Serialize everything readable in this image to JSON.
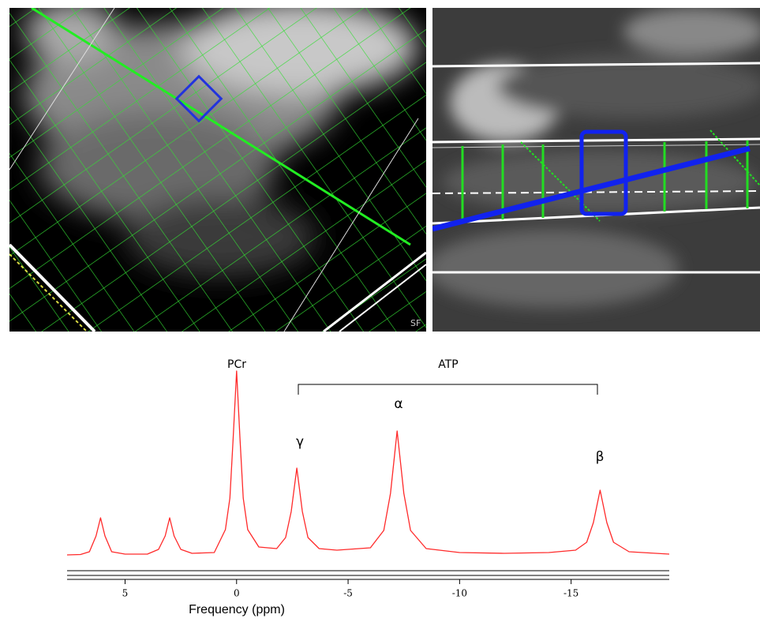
{
  "image_text": "SF",
  "chart_data": {
    "type": "line",
    "xlabel": "Frequency (ppm)",
    "annotations": [
      "PCr",
      "ATP",
      "γ",
      "α",
      "β"
    ],
    "x": [
      7.6,
      7,
      6.6,
      6.3,
      6.1,
      5.9,
      5.6,
      5,
      4,
      3.5,
      3.2,
      3.0,
      2.8,
      2.5,
      2,
      1,
      0.5,
      0.3,
      0.15,
      0,
      -0.15,
      -0.3,
      -0.5,
      -1,
      -1.8,
      -2.2,
      -2.45,
      -2.7,
      -2.95,
      -3.2,
      -3.7,
      -4.5,
      -6.0,
      -6.6,
      -6.9,
      -7.2,
      -7.5,
      -7.8,
      -8.5,
      -10,
      -12,
      -14,
      -15.2,
      -15.7,
      -16.0,
      -16.3,
      -16.6,
      -16.9,
      -17.6,
      -19.4
    ],
    "values": [
      0,
      0.5,
      4,
      24,
      47,
      24,
      4,
      1,
      1,
      7,
      24,
      47,
      24,
      7,
      2,
      3,
      32,
      72,
      149,
      233,
      149,
      72,
      32,
      10,
      8,
      22,
      55,
      110,
      55,
      22,
      8,
      6,
      9,
      31,
      78,
      157,
      78,
      31,
      8,
      3,
      2,
      3,
      6,
      16,
      41,
      82,
      41,
      16,
      4,
      1
    ],
    "color": "#ff2a2a",
    "xlim": [
      7.6,
      -19.4
    ],
    "xticks": [
      5,
      0,
      -5,
      -10,
      -15
    ],
    "ylim": [
      0,
      240
    ]
  }
}
